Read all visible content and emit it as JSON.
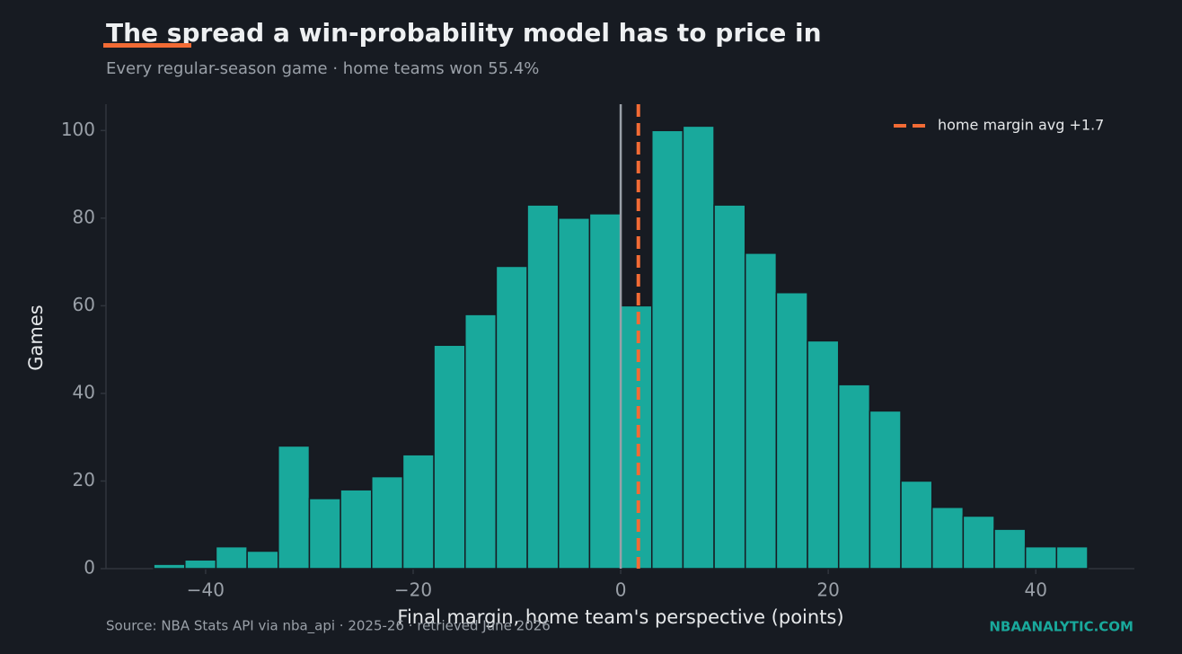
{
  "chart_data": {
    "type": "histogram",
    "title": "The spread a win-probability model has to price in",
    "subtitle": "Every regular-season game · home teams won 55.4%",
    "x_label": "Final margin, home team's perspective (points)",
    "y_label": "Games",
    "source": "Source: NBA Stats API via nba_api · 2025-26 · retrieved June 2026",
    "brand": "NBAANALYTIC.COM",
    "bins": [
      -45,
      -42,
      -39,
      -36,
      -33,
      -30,
      -27,
      -24,
      -21,
      -18,
      -15,
      -12,
      -9,
      -6,
      -3,
      0,
      3,
      6,
      9,
      12,
      15,
      18,
      21,
      24,
      27,
      30,
      33,
      36,
      39,
      42,
      45
    ],
    "counts": [
      1,
      2,
      5,
      4,
      28,
      16,
      18,
      21,
      26,
      51,
      58,
      69,
      83,
      80,
      81,
      60,
      100,
      101,
      83,
      72,
      63,
      52,
      42,
      36,
      20,
      14,
      12,
      9,
      5,
      5
    ],
    "color": "#19a99c",
    "reference_line": 0,
    "mean_line": {
      "value": 1.7,
      "label": "home margin avg +1.7",
      "color": "#f26b35"
    },
    "legend_position": "upper right",
    "xlim": [
      -49.6,
      49.5
    ],
    "ylim": [
      0,
      106
    ],
    "xticks": [
      {
        "value": -40,
        "label": "−40"
      },
      {
        "value": -20,
        "label": "−20"
      },
      0,
      20,
      40
    ],
    "yticks": [
      0,
      20,
      40,
      60,
      80,
      100
    ]
  }
}
